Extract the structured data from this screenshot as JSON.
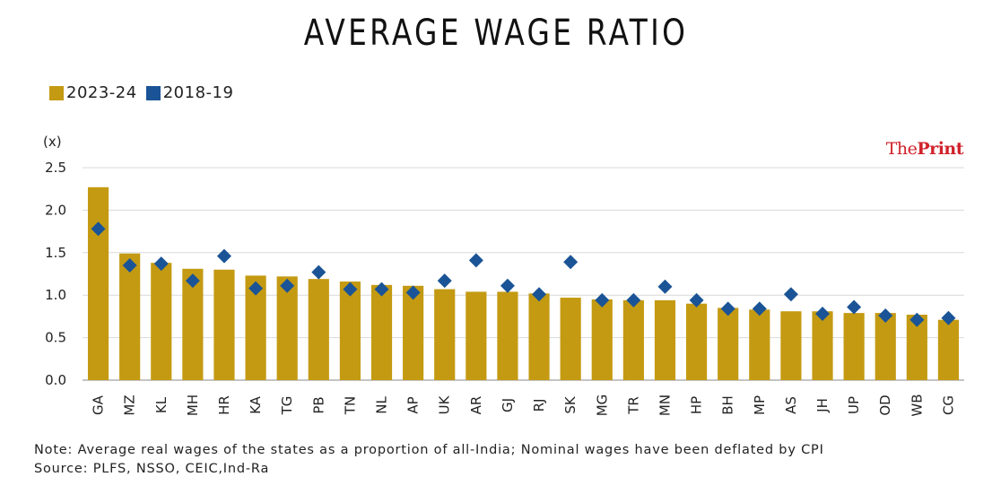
{
  "chart_data": {
    "type": "bar",
    "title": "AVERAGE WAGE RATIO",
    "unit_label": "(x)",
    "categories": [
      "GA",
      "MZ",
      "KL",
      "MH",
      "HR",
      "KA",
      "TG",
      "PB",
      "TN",
      "NL",
      "AP",
      "UK",
      "AR",
      "GJ",
      "RJ",
      "SK",
      "MG",
      "TR",
      "MN",
      "HP",
      "BH",
      "MP",
      "AS",
      "JH",
      "UP",
      "OD",
      "WB",
      "CG"
    ],
    "series": [
      {
        "name": "2023-24",
        "kind": "bar",
        "color": "#c49a12",
        "values": [
          2.27,
          1.49,
          1.38,
          1.31,
          1.3,
          1.23,
          1.22,
          1.19,
          1.16,
          1.12,
          1.11,
          1.07,
          1.04,
          1.04,
          1.02,
          0.97,
          0.95,
          0.94,
          0.94,
          0.9,
          0.85,
          0.83,
          0.81,
          0.81,
          0.79,
          0.79,
          0.77,
          0.71
        ]
      },
      {
        "name": "2018-19",
        "kind": "marker",
        "color": "#1a5496",
        "values": [
          1.78,
          1.35,
          1.37,
          1.17,
          1.46,
          1.08,
          1.11,
          1.27,
          1.07,
          1.07,
          1.03,
          1.17,
          1.41,
          1.11,
          1.01,
          1.39,
          0.94,
          0.94,
          1.1,
          0.94,
          0.84,
          0.84,
          1.01,
          0.78,
          0.86,
          0.76,
          0.71,
          0.73
        ]
      }
    ],
    "ylim": [
      0,
      2.5
    ],
    "yticks": [
      "0.0",
      "0.5",
      "1.0",
      "1.5",
      "2.0",
      "2.5"
    ],
    "grid": true,
    "legend_position": "top-left"
  },
  "brand": {
    "prefix": "The",
    "suffix": "Print"
  },
  "notes": {
    "note": "Note: Average real wages of the states as a proportion of all-India; Nominal wages have been deflated by CPI",
    "source": "Source: PLFS, NSSO, CEIC,Ind-Ra"
  }
}
